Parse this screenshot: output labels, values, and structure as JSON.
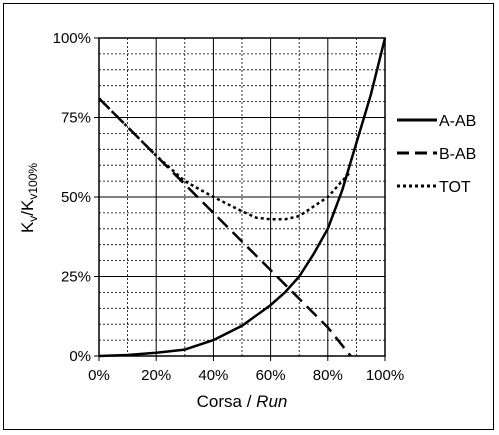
{
  "chart_data": {
    "type": "line",
    "title": "",
    "xlabel": "Corsa / ",
    "xlabel_italic": "Run",
    "ylabel_main": "K",
    "ylabel_sub1": "v",
    "ylabel_mid": "/K",
    "ylabel_sub2": "v100%",
    "xlim": [
      0,
      100
    ],
    "ylim": [
      0,
      100
    ],
    "x_ticks": [
      "0%",
      "20%",
      "40%",
      "60%",
      "80%",
      "100%"
    ],
    "y_ticks": [
      "0%",
      "25%",
      "50%",
      "75%",
      "100%"
    ],
    "grid": true,
    "legend_position": "right",
    "series": [
      {
        "name": "A-AB",
        "style": "solid",
        "x": [
          0,
          10,
          20,
          30,
          40,
          50,
          60,
          65,
          70,
          75,
          80,
          85,
          90,
          95,
          100
        ],
        "y": [
          0,
          0.3,
          1,
          2,
          5,
          9.5,
          16,
          20,
          25,
          32,
          40,
          52,
          67,
          82,
          100
        ]
      },
      {
        "name": "B-AB",
        "style": "dashed",
        "x": [
          0,
          10,
          20,
          30,
          40,
          50,
          60,
          70,
          80,
          88
        ],
        "y": [
          81,
          72,
          63,
          54,
          45,
          36,
          27,
          18,
          9,
          0
        ]
      },
      {
        "name": "TOT",
        "style": "dotted",
        "x": [
          0,
          10,
          20,
          30,
          40,
          50,
          55,
          60,
          65,
          70,
          75,
          80,
          85,
          88
        ],
        "y": [
          81,
          72,
          63,
          55,
          50,
          45.5,
          43.5,
          43,
          43,
          44,
          47,
          50,
          55,
          58
        ]
      }
    ]
  }
}
